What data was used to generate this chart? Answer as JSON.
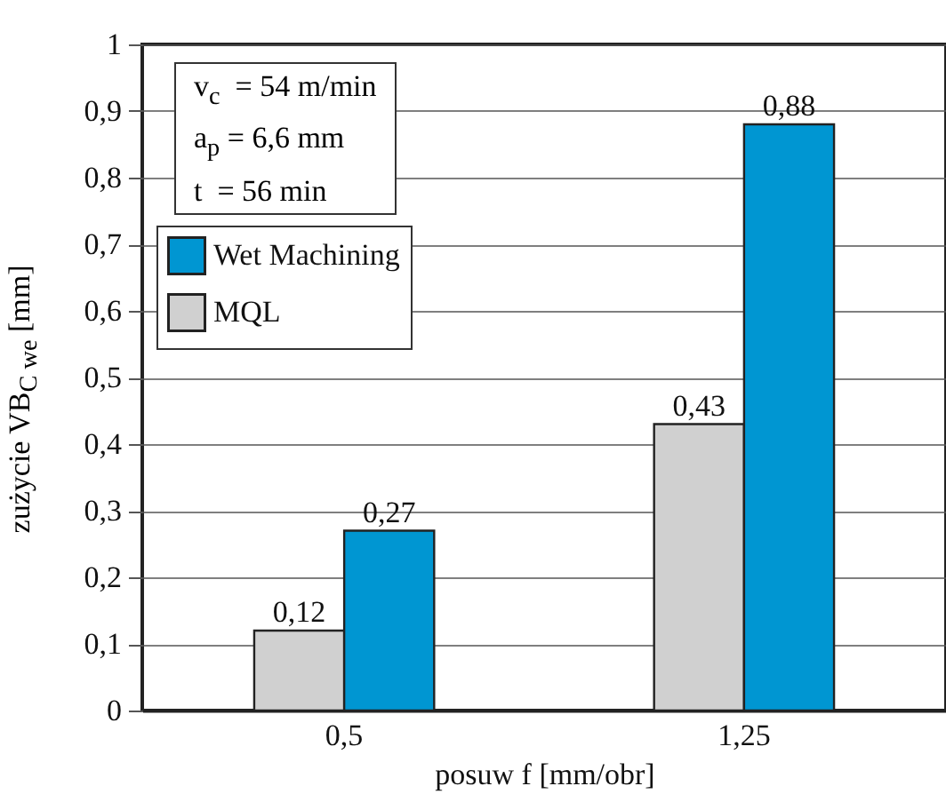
{
  "chart_data": {
    "type": "bar",
    "xlabel": "posuw f  [mm/obr]",
    "ylabel": "zużycie VB$_{C we}$  [mm]",
    "annotations": [
      "v$_{c}$  = 54 m/min",
      "a$_{p}$ = 6,6 mm",
      "t  = 56 min"
    ],
    "categories": [
      "0,5",
      "1,25"
    ],
    "series": [
      {
        "name": "MQL",
        "color": "#d0d0d0",
        "values": [
          0.12,
          0.43
        ],
        "value_labels": [
          "0,12",
          "0,43"
        ]
      },
      {
        "name": "Wet Machining",
        "color": "#0096d2",
        "values": [
          0.27,
          0.88
        ],
        "value_labels": [
          "0,27",
          "0,88"
        ]
      }
    ],
    "ylim": [
      0,
      1
    ],
    "yticks": [
      {
        "value": 0,
        "label": "0"
      },
      {
        "value": 0.1,
        "label": "0,1"
      },
      {
        "value": 0.2,
        "label": "0,2"
      },
      {
        "value": 0.3,
        "label": "0,3"
      },
      {
        "value": 0.4,
        "label": "0,4"
      },
      {
        "value": 0.5,
        "label": "0,5"
      },
      {
        "value": 0.6,
        "label": "0,6"
      },
      {
        "value": 0.7,
        "label": "0,7"
      },
      {
        "value": 0.8,
        "label": "0,8"
      },
      {
        "value": 0.9,
        "label": "0,9"
      },
      {
        "value": 1,
        "label": "1"
      }
    ],
    "grid": "y",
    "legend": "top left"
  }
}
